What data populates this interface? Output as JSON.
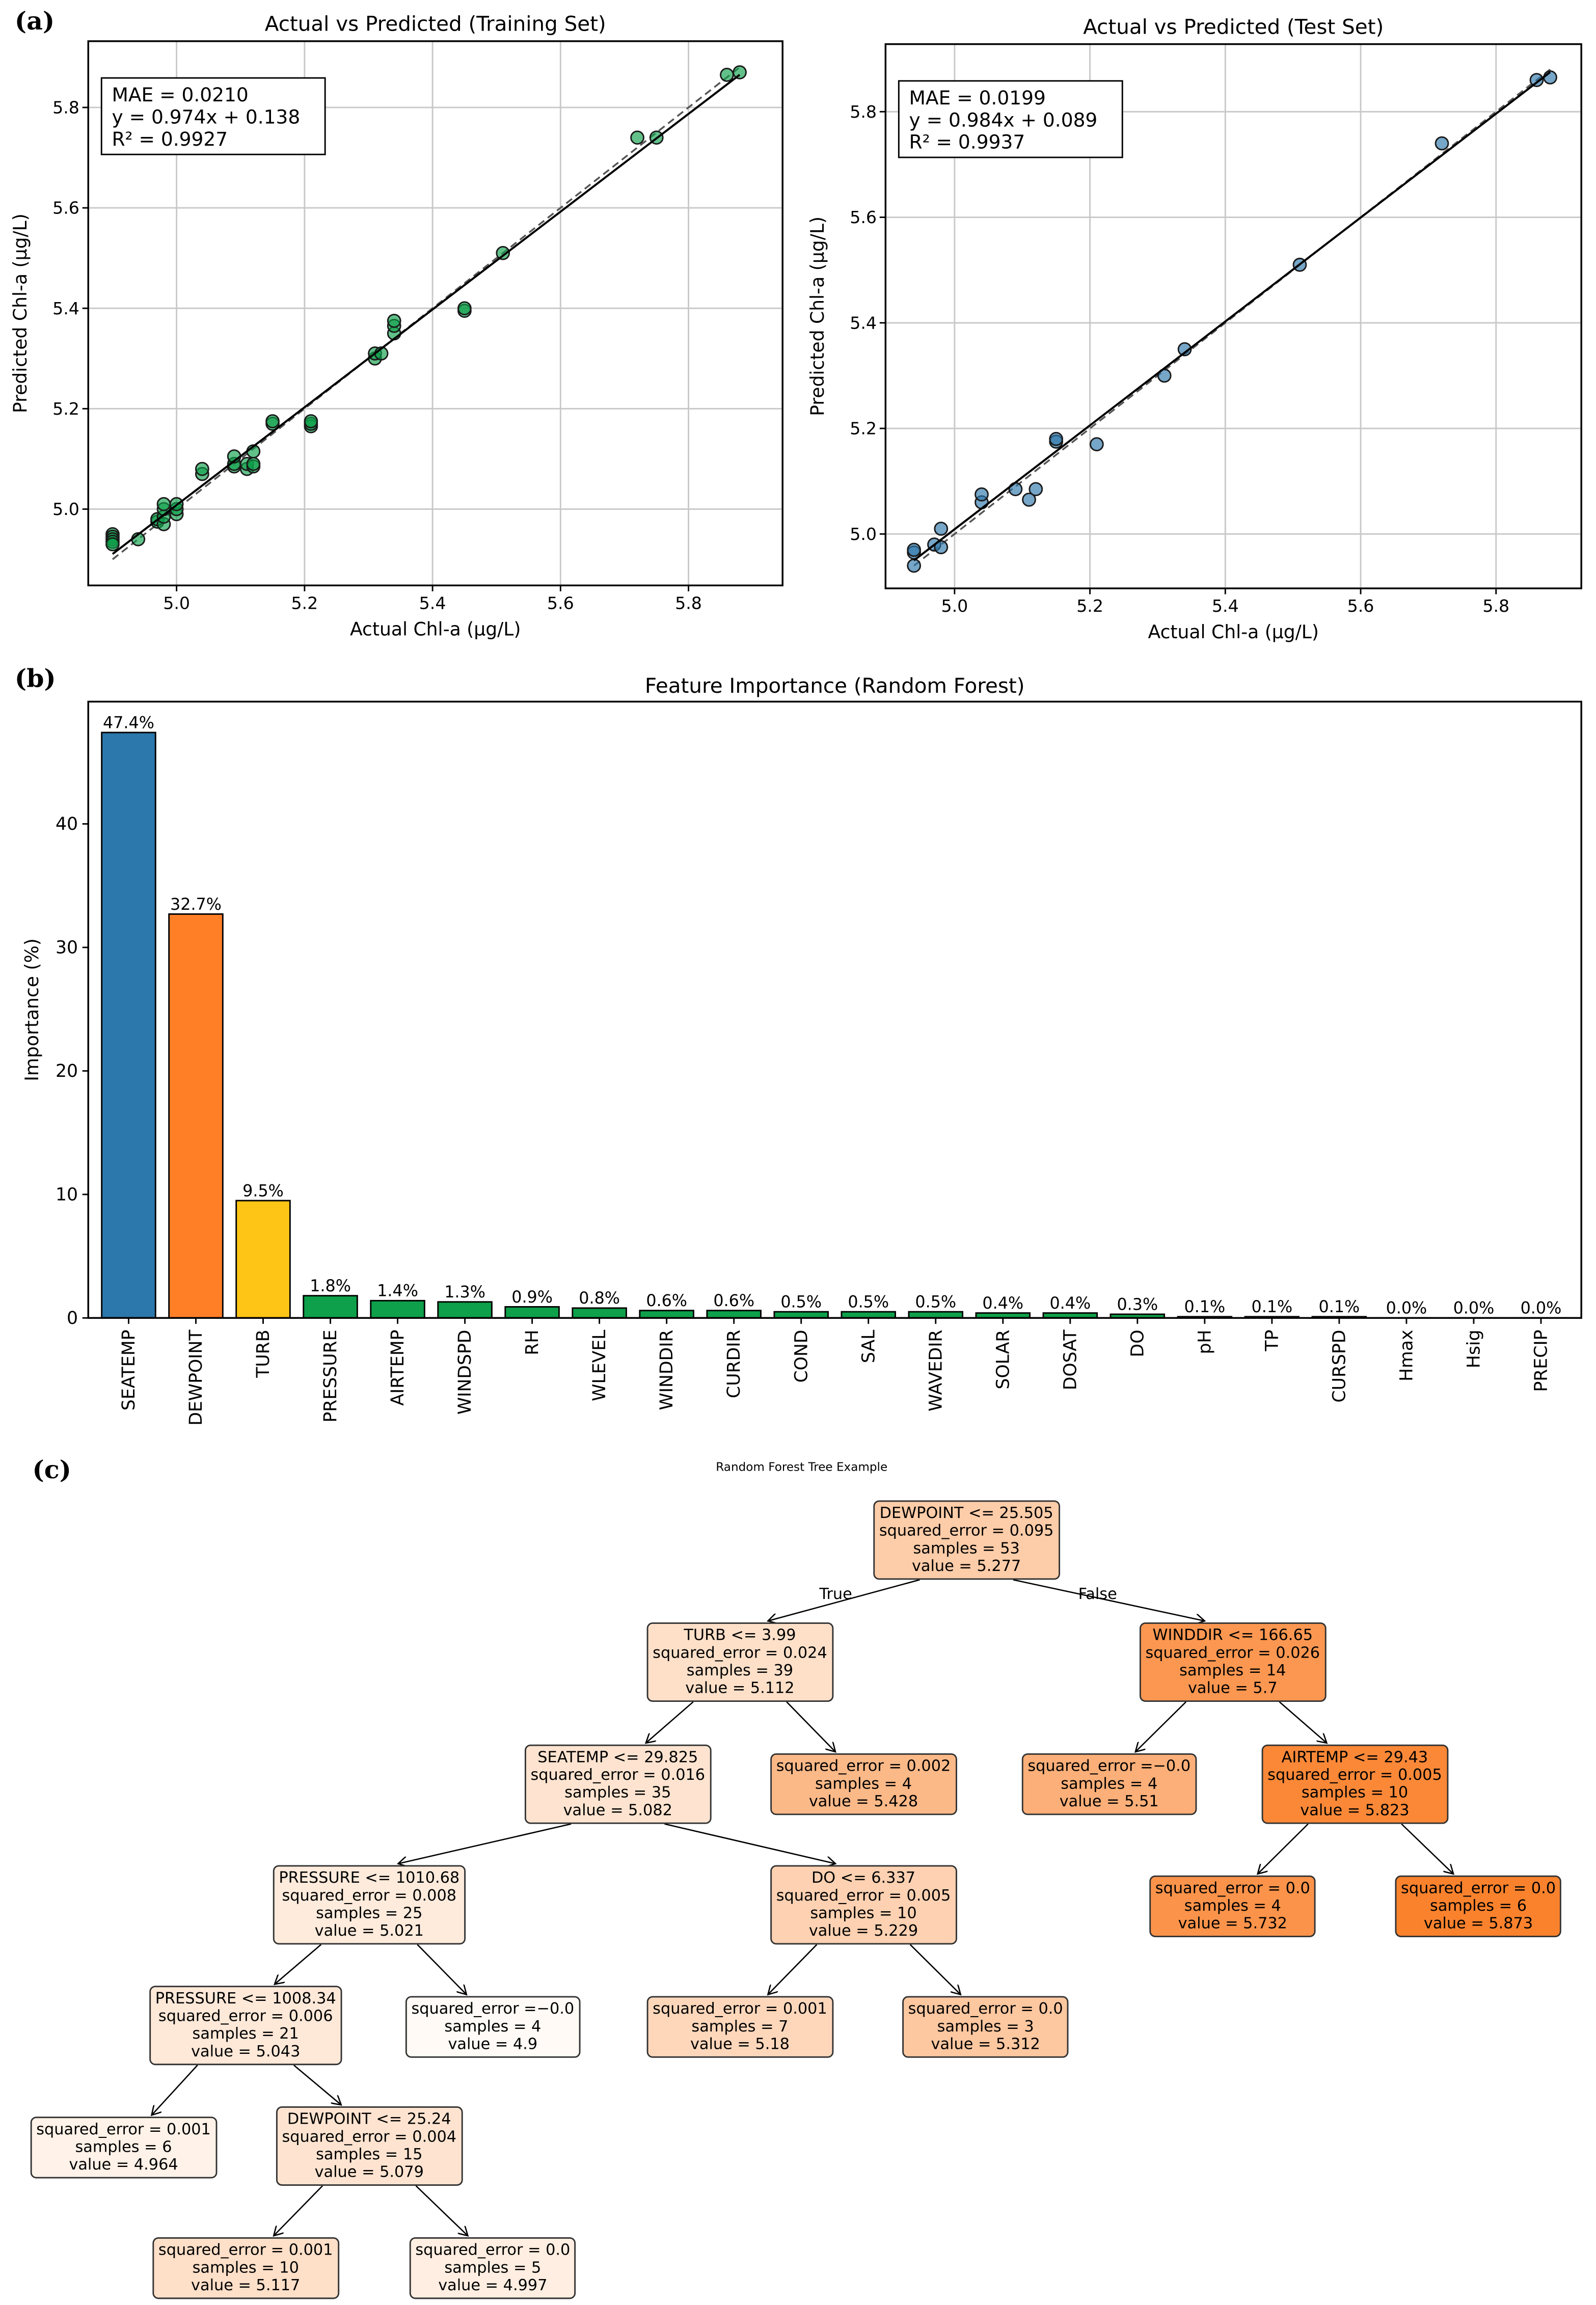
{
  "panel_labels": {
    "a": "(a)",
    "b": "(b)",
    "c": "(c)"
  },
  "chart_data": [
    {
      "type": "scatter",
      "title": "Actual vs Predicted (Training Set)",
      "xlabel": "Actual Chl-a (μg/L)",
      "ylabel": "Predicted Chl-a (μg/L)",
      "xlim": [
        4.862,
        5.947
      ],
      "ylim": [
        4.848,
        5.932
      ],
      "xticks": [
        "5.0",
        "5.2",
        "5.4",
        "5.6",
        "5.8"
      ],
      "yticks": [
        "5.0",
        "5.2",
        "5.4",
        "5.6",
        "5.8"
      ],
      "grid": true,
      "color": "#0ea04a",
      "annotation": [
        "MAE = 0.0210",
        "y = 0.974x + 0.138",
        "R² = 0.9927"
      ],
      "fit": {
        "slope": 0.974,
        "intercept": 0.138
      },
      "line_range": [
        4.9,
        5.88
      ],
      "points": [
        [
          4.9,
          4.95
        ],
        [
          4.9,
          4.945
        ],
        [
          4.9,
          4.94
        ],
        [
          4.9,
          4.935
        ],
        [
          4.9,
          4.93
        ],
        [
          4.94,
          4.94
        ],
        [
          4.97,
          4.975
        ],
        [
          4.97,
          4.98
        ],
        [
          4.98,
          4.97
        ],
        [
          4.98,
          4.985
        ],
        [
          4.98,
          5.0
        ],
        [
          4.98,
          5.01
        ],
        [
          5.0,
          4.99
        ],
        [
          5.0,
          5.0
        ],
        [
          5.0,
          5.01
        ],
        [
          5.04,
          5.07
        ],
        [
          5.04,
          5.08
        ],
        [
          5.09,
          5.085
        ],
        [
          5.09,
          5.09
        ],
        [
          5.09,
          5.105
        ],
        [
          5.11,
          5.08
        ],
        [
          5.11,
          5.09
        ],
        [
          5.12,
          5.085
        ],
        [
          5.12,
          5.09
        ],
        [
          5.12,
          5.115
        ],
        [
          5.15,
          5.17
        ],
        [
          5.15,
          5.175
        ],
        [
          5.21,
          5.165
        ],
        [
          5.21,
          5.17
        ],
        [
          5.21,
          5.175
        ],
        [
          5.31,
          5.3
        ],
        [
          5.31,
          5.31
        ],
        [
          5.32,
          5.31
        ],
        [
          5.34,
          5.35
        ],
        [
          5.34,
          5.365
        ],
        [
          5.34,
          5.375
        ],
        [
          5.45,
          5.395
        ],
        [
          5.45,
          5.4
        ],
        [
          5.51,
          5.51
        ],
        [
          5.72,
          5.74
        ],
        [
          5.75,
          5.74
        ],
        [
          5.86,
          5.865
        ],
        [
          5.88,
          5.87
        ]
      ]
    },
    {
      "type": "scatter",
      "title": "Actual vs Predicted (Test Set)",
      "xlabel": "Actual Chl-a (μg/L)",
      "ylabel": "Predicted Chl-a (μg/L)",
      "xlim": [
        4.898,
        5.926
      ],
      "ylim": [
        4.897,
        5.928
      ],
      "xticks": [
        "5.0",
        "5.2",
        "5.4",
        "5.6",
        "5.8"
      ],
      "yticks": [
        "5.0",
        "5.2",
        "5.4",
        "5.6",
        "5.8"
      ],
      "grid": true,
      "color": "#2c77ab",
      "annotation": [
        "MAE = 0.0199",
        "y = 0.984x + 0.089",
        "R² = 0.9937"
      ],
      "fit": {
        "slope": 0.984,
        "intercept": 0.089
      },
      "line_range": [
        4.94,
        5.88
      ],
      "points": [
        [
          4.94,
          4.94
        ],
        [
          4.94,
          4.965
        ],
        [
          4.94,
          4.97
        ],
        [
          4.97,
          4.98
        ],
        [
          4.98,
          4.975
        ],
        [
          4.98,
          5.01
        ],
        [
          5.04,
          5.06
        ],
        [
          5.04,
          5.075
        ],
        [
          5.09,
          5.085
        ],
        [
          5.11,
          5.065
        ],
        [
          5.12,
          5.085
        ],
        [
          5.15,
          5.175
        ],
        [
          5.15,
          5.18
        ],
        [
          5.21,
          5.17
        ],
        [
          5.31,
          5.3
        ],
        [
          5.34,
          5.35
        ],
        [
          5.51,
          5.51
        ],
        [
          5.72,
          5.74
        ],
        [
          5.86,
          5.86
        ],
        [
          5.88,
          5.865
        ]
      ]
    },
    {
      "type": "bar",
      "title": "Feature Importance (Random Forest)",
      "xlabel": "",
      "ylabel": "Importance (%)",
      "ylim": [
        0,
        49.9
      ],
      "yticks": [
        "0",
        "10",
        "20",
        "30",
        "40"
      ],
      "grid": false,
      "categories": [
        "SEATEMP",
        "DEWPOINT",
        "TURB",
        "PRESSURE",
        "AIRTEMP",
        "WINDSPD",
        "RH",
        "WLEVEL",
        "WINDDIR",
        "CURDIR",
        "COND",
        "SAL",
        "WAVEDIR",
        "SOLAR",
        "DOSAT",
        "DO",
        "pH",
        "TP",
        "CURSPD",
        "Hmax",
        "Hsig",
        "PRECIP"
      ],
      "values": [
        47.4,
        32.7,
        9.5,
        1.8,
        1.4,
        1.3,
        0.9,
        0.8,
        0.6,
        0.6,
        0.5,
        0.5,
        0.5,
        0.4,
        0.4,
        0.3,
        0.1,
        0.1,
        0.1,
        0.0,
        0.0,
        0.0
      ],
      "labels": [
        "47.4%",
        "32.7%",
        "9.5%",
        "1.8%",
        "1.4%",
        "1.3%",
        "0.9%",
        "0.8%",
        "0.6%",
        "0.6%",
        "0.5%",
        "0.5%",
        "0.5%",
        "0.4%",
        "0.4%",
        "0.3%",
        "0.1%",
        "0.1%",
        "0.1%",
        "0.0%",
        "0.0%",
        "0.0%"
      ],
      "colors": [
        "#2c77ab",
        "#ff7f27",
        "#ffc516",
        "#0ea04a"
      ]
    }
  ],
  "tree": {
    "title": "Random Forest Tree Example",
    "true_label": "True",
    "false_label": "False",
    "value_range": [
      4.9,
      5.873
    ],
    "nodes": [
      {
        "id": 0,
        "parent": null,
        "lines": [
          "DEWPOINT <= 25.505",
          "squared_error = 0.095",
          "samples = 53",
          "value = 5.277"
        ],
        "value": 5.277
      },
      {
        "id": 1,
        "parent": 0,
        "lines": [
          "TURB <= 3.99",
          "squared_error = 0.024",
          "samples = 39",
          "value = 5.112"
        ],
        "value": 5.112
      },
      {
        "id": 2,
        "parent": 0,
        "lines": [
          "WINDDIR <= 166.65",
          "squared_error = 0.026",
          "samples = 14",
          "value = 5.7"
        ],
        "value": 5.7
      },
      {
        "id": 3,
        "parent": 1,
        "lines": [
          "SEATEMP <= 29.825",
          "squared_error = 0.016",
          "samples = 35",
          "value = 5.082"
        ],
        "value": 5.082
      },
      {
        "id": 4,
        "parent": 1,
        "lines": [
          "squared_error = 0.002",
          "samples = 4",
          "value = 5.428"
        ],
        "value": 5.428
      },
      {
        "id": 5,
        "parent": 2,
        "lines": [
          "squared_error =−0.0",
          "samples = 4",
          "value = 5.51"
        ],
        "value": 5.51
      },
      {
        "id": 6,
        "parent": 2,
        "lines": [
          "AIRTEMP <= 29.43",
          "squared_error = 0.005",
          "samples = 10",
          "value = 5.823"
        ],
        "value": 5.823
      },
      {
        "id": 7,
        "parent": 3,
        "lines": [
          "PRESSURE <= 1010.68",
          "squared_error = 0.008",
          "samples = 25",
          "value = 5.021"
        ],
        "value": 5.021
      },
      {
        "id": 8,
        "parent": 3,
        "lines": [
          "DO <= 6.337",
          "squared_error = 0.005",
          "samples = 10",
          "value = 5.229"
        ],
        "value": 5.229
      },
      {
        "id": 9,
        "parent": 6,
        "lines": [
          "squared_error = 0.0",
          "samples = 4",
          "value = 5.732"
        ],
        "value": 5.732
      },
      {
        "id": 10,
        "parent": 6,
        "lines": [
          "squared_error = 0.0",
          "samples = 6",
          "value = 5.873"
        ],
        "value": 5.873
      },
      {
        "id": 11,
        "parent": 7,
        "lines": [
          "PRESSURE <= 1008.34",
          "squared_error = 0.006",
          "samples = 21",
          "value = 5.043"
        ],
        "value": 5.043
      },
      {
        "id": 12,
        "parent": 7,
        "lines": [
          "squared_error =−0.0",
          "samples = 4",
          "value = 4.9"
        ],
        "value": 4.9
      },
      {
        "id": 13,
        "parent": 8,
        "lines": [
          "squared_error = 0.001",
          "samples = 7",
          "value = 5.18"
        ],
        "value": 5.18
      },
      {
        "id": 14,
        "parent": 8,
        "lines": [
          "squared_error = 0.0",
          "samples = 3",
          "value = 5.312"
        ],
        "value": 5.312
      },
      {
        "id": 15,
        "parent": 11,
        "lines": [
          "squared_error = 0.001",
          "samples = 6",
          "value = 4.964"
        ],
        "value": 4.964
      },
      {
        "id": 16,
        "parent": 11,
        "lines": [
          "DEWPOINT <= 25.24",
          "squared_error = 0.004",
          "samples = 15",
          "value = 5.079"
        ],
        "value": 5.079
      },
      {
        "id": 17,
        "parent": 16,
        "lines": [
          "squared_error = 0.001",
          "samples = 10",
          "value = 5.117"
        ],
        "value": 5.117
      },
      {
        "id": 18,
        "parent": 16,
        "lines": [
          "squared_error = 0.0",
          "samples = 5",
          "value = 4.997"
        ],
        "value": 4.997
      }
    ]
  }
}
